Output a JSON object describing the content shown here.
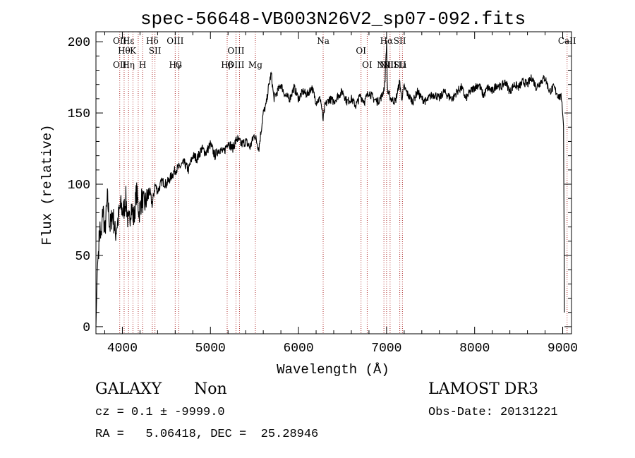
{
  "chart_data": {
    "type": "line",
    "title": "spec-56648-VB003N26V2_sp07-092.fits",
    "xlabel": "Wavelength (Å)",
    "ylabel": "Flux (relative)",
    "xlim": [
      3700,
      9100
    ],
    "ylim": [
      -5,
      207
    ],
    "xticks": [
      4000,
      5000,
      6000,
      7000,
      8000,
      9000
    ],
    "yticks": [
      0,
      50,
      100,
      150,
      200
    ],
    "grid": false,
    "line_color": "#000000",
    "marker_color": "#b03030",
    "series": [
      {
        "x": [
          3700,
          3715,
          3730,
          3745,
          3760,
          3780,
          3800,
          3830,
          3860,
          3890,
          3920,
          3950,
          3980,
          4010,
          4040,
          4070,
          4100,
          4130,
          4160,
          4190,
          4220,
          4250,
          4280,
          4310,
          4340,
          4370,
          4400,
          4450,
          4500,
          4550,
          4600,
          4650,
          4700,
          4750,
          4800,
          4850,
          4900,
          4950,
          5000,
          5050,
          5100,
          5150,
          5200,
          5250,
          5300,
          5350,
          5400,
          5450,
          5500,
          5550,
          5600,
          5630,
          5660,
          5690,
          5720,
          5760,
          5800,
          5850,
          5900,
          5950,
          6000,
          6050,
          6100,
          6150,
          6200,
          6250,
          6280,
          6300,
          6350,
          6400,
          6450,
          6500,
          6550,
          6600,
          6650,
          6700,
          6750,
          6800,
          6850,
          6900,
          6950,
          6980,
          7000,
          7010,
          7050,
          7100,
          7150,
          7170,
          7200,
          7250,
          7300,
          7350,
          7400,
          7450,
          7500,
          7550,
          7600,
          7650,
          7700,
          7750,
          7800,
          7850,
          7900,
          7950,
          8000,
          8050,
          8100,
          8150,
          8200,
          8250,
          8300,
          8350,
          8400,
          8450,
          8500,
          8550,
          8600,
          8650,
          8700,
          8750,
          8800,
          8850,
          8900,
          8950,
          8990,
          9010,
          9020
        ],
        "values": [
          0,
          40,
          55,
          70,
          60,
          85,
          65,
          90,
          70,
          80,
          65,
          75,
          85,
          80,
          90,
          70,
          85,
          75,
          95,
          80,
          90,
          85,
          90,
          95,
          85,
          100,
          95,
          102,
          100,
          105,
          110,
          112,
          115,
          110,
          120,
          118,
          125,
          122,
          128,
          120,
          125,
          122,
          130,
          125,
          132,
          128,
          130,
          126,
          135,
          125,
          150,
          155,
          168,
          178,
          160,
          165,
          170,
          162,
          160,
          168,
          160,
          165,
          163,
          168,
          158,
          160,
          145,
          155,
          160,
          158,
          162,
          165,
          158,
          160,
          155,
          162,
          158,
          165,
          160,
          158,
          162,
          170,
          200,
          165,
          160,
          158,
          172,
          160,
          168,
          162,
          158,
          165,
          160,
          158,
          162,
          163,
          160,
          165,
          162,
          160,
          165,
          168,
          160,
          165,
          168,
          170,
          162,
          168,
          165,
          170,
          168,
          172,
          165,
          170,
          168,
          172,
          170,
          175,
          168,
          172,
          175,
          165,
          168,
          162,
          160,
          140,
          10
        ]
      }
    ],
    "spectral_lines": [
      {
        "x": 3970,
        "top": "OII",
        "bottom": "OII"
      },
      {
        "x": 4020,
        "top": "Hθ",
        "bottom": ""
      },
      {
        "x": 4070,
        "top": "Hε",
        "bottom": "Hη"
      },
      {
        "x": 4120,
        "top": "K",
        "bottom": ""
      },
      {
        "x": 4180,
        "top": "",
        "bottom": ""
      },
      {
        "x": 4230,
        "top": "",
        "bottom": "H"
      },
      {
        "x": 4340,
        "top": "Hδ",
        "bottom": ""
      },
      {
        "x": 4370,
        "top": "SII",
        "bottom": ""
      },
      {
        "x": 4600,
        "top": "OIII",
        "bottom": "Hγ"
      },
      {
        "x": 4640,
        "top": "",
        "bottom": "G"
      },
      {
        "x": 5190,
        "top": "",
        "bottom": "Hβ"
      },
      {
        "x": 5290,
        "top": "OIII",
        "bottom": "OIII"
      },
      {
        "x": 5330,
        "top": "",
        "bottom": ""
      },
      {
        "x": 5510,
        "top": "",
        "bottom": "Mg"
      },
      {
        "x": 6280,
        "top": "Na",
        "bottom": ""
      },
      {
        "x": 6710,
        "top": "OI",
        "bottom": ""
      },
      {
        "x": 6780,
        "top": "",
        "bottom": "OI"
      },
      {
        "x": 6970,
        "top": "",
        "bottom": "NII"
      },
      {
        "x": 7000,
        "top": "Hα",
        "bottom": "NII"
      },
      {
        "x": 7040,
        "top": "",
        "bottom": "NII"
      },
      {
        "x": 7150,
        "top": "SII",
        "bottom": "SII"
      },
      {
        "x": 7180,
        "top": "",
        "bottom": "Li"
      },
      {
        "x": 9050,
        "top": "CaII",
        "bottom": ""
      }
    ]
  },
  "info": {
    "class": "GALAXY",
    "subclass": "Non",
    "survey": "LAMOST DR3",
    "cz": "cz = 0.1 ± -9999.0",
    "obs_date": "Obs-Date: 20131221",
    "coords": "RA =   5.06418, DEC =  25.28946"
  }
}
